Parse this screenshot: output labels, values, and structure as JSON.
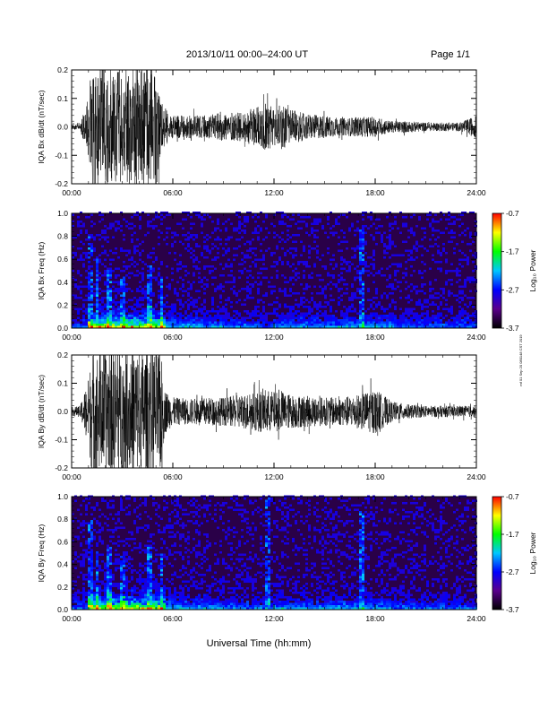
{
  "header": {
    "title": "2013/10/11   00:00–24:00 UT",
    "page": "Page 1/1"
  },
  "footer": {
    "xlabel": "Universal Time (hh:mm)"
  },
  "side_stamp": "mf 01 Sep 20 080148 CST 2019",
  "colorbar": {
    "label": "Log₁₀ Power",
    "ticks": [
      "-0.7",
      "-1.7",
      "-2.7",
      "-3.7"
    ],
    "colors": [
      "#ff0000",
      "#ffff00",
      "#00ff00",
      "#00c8ff",
      "#0000ff",
      "#5a008c",
      "#000000"
    ]
  },
  "chart_data": [
    {
      "type": "line",
      "ylabel": "IQA Bx dB/dt (nT/sec)",
      "x_ticks": [
        "00:00",
        "06:00",
        "12:00",
        "18:00",
        "24:00"
      ],
      "y_ticks": [
        "0.2",
        "0.1",
        "0.0",
        "-0.1",
        "-0.2"
      ],
      "xlim": [
        0,
        24
      ],
      "ylim": [
        -0.2,
        0.2
      ],
      "series": [
        {
          "x": [
            0,
            0.5,
            1.0,
            1.2,
            1.5,
            2.0,
            2.5,
            3.0,
            3.5,
            4.0,
            4.5,
            5.0,
            5.3,
            5.5,
            6,
            7,
            8,
            9,
            10,
            11,
            11.5,
            12,
            12.5,
            13,
            14,
            15,
            16,
            17,
            18,
            19,
            20,
            21,
            22,
            23,
            24
          ],
          "y": [
            0.01,
            0.015,
            0.1,
            0.22,
            0.22,
            0.22,
            0.2,
            0.22,
            0.2,
            0.22,
            0.22,
            0.22,
            0.1,
            0.07,
            0.04,
            0.04,
            0.04,
            0.05,
            0.05,
            0.07,
            0.09,
            0.07,
            0.08,
            0.06,
            0.045,
            0.04,
            0.03,
            0.035,
            0.035,
            0.02,
            0.02,
            0.015,
            0.015,
            0.015,
            0.04
          ]
        }
      ]
    },
    {
      "type": "heatmap",
      "ylabel": "IQA Bx Freq (Hz)",
      "x_ticks": [
        "00:00",
        "06:00",
        "12:00",
        "18:00",
        "24:00"
      ],
      "y_ticks": [
        "1.0",
        "0.8",
        "0.6",
        "0.4",
        "0.2",
        "0.0"
      ],
      "xlim": [
        0,
        24
      ],
      "ylim": [
        0,
        1.0
      ],
      "zlim": [
        -3.7,
        -0.7
      ],
      "bursts": [
        {
          "t": 1.1,
          "f": 0.8
        },
        {
          "t": 1.5,
          "f": 0.6
        },
        {
          "t": 2.2,
          "f": 0.5
        },
        {
          "t": 3.0,
          "f": 0.45
        },
        {
          "t": 4.6,
          "f": 0.55
        },
        {
          "t": 5.3,
          "f": 0.45
        },
        {
          "t": 17.2,
          "f": 0.85
        }
      ]
    },
    {
      "type": "line",
      "ylabel": "IQA By dB/dt (nT/sec)",
      "x_ticks": [
        "00:00",
        "06:00",
        "12:00",
        "18:00",
        "24:00"
      ],
      "y_ticks": [
        "0.2",
        "0.1",
        "0.0",
        "-0.1",
        "-0.2"
      ],
      "xlim": [
        0,
        24
      ],
      "ylim": [
        -0.2,
        0.2
      ],
      "series": [
        {
          "x": [
            0,
            0.5,
            1.0,
            1.2,
            1.5,
            2.0,
            2.5,
            3.0,
            3.5,
            4.0,
            4.5,
            5.0,
            5.3,
            5.5,
            6,
            7,
            8,
            9,
            10,
            11,
            11.5,
            12,
            12.5,
            13,
            14,
            15,
            16,
            17,
            18,
            19,
            20,
            21,
            22,
            23,
            24
          ],
          "y": [
            0.015,
            0.02,
            0.12,
            0.22,
            0.22,
            0.22,
            0.22,
            0.22,
            0.22,
            0.22,
            0.22,
            0.22,
            0.22,
            0.08,
            0.05,
            0.045,
            0.05,
            0.05,
            0.06,
            0.07,
            0.08,
            0.07,
            0.07,
            0.06,
            0.055,
            0.05,
            0.05,
            0.06,
            0.08,
            0.035,
            0.025,
            0.02,
            0.02,
            0.02,
            0.02
          ]
        }
      ]
    },
    {
      "type": "heatmap",
      "ylabel": "IQA By Freq (Hz)",
      "x_ticks": [
        "00:00",
        "06:00",
        "12:00",
        "18:00",
        "24:00"
      ],
      "y_ticks": [
        "1.0",
        "0.8",
        "0.6",
        "0.4",
        "0.2",
        "0.0"
      ],
      "xlim": [
        0,
        24
      ],
      "ylim": [
        0,
        1.0
      ],
      "zlim": [
        -3.7,
        -0.7
      ],
      "bursts": [
        {
          "t": 1.1,
          "f": 0.8
        },
        {
          "t": 1.5,
          "f": 0.6
        },
        {
          "t": 2.2,
          "f": 0.55
        },
        {
          "t": 3.0,
          "f": 0.5
        },
        {
          "t": 4.6,
          "f": 0.55
        },
        {
          "t": 5.3,
          "f": 0.5
        },
        {
          "t": 11.6,
          "f": 1.0
        },
        {
          "t": 17.2,
          "f": 0.9
        }
      ]
    }
  ]
}
